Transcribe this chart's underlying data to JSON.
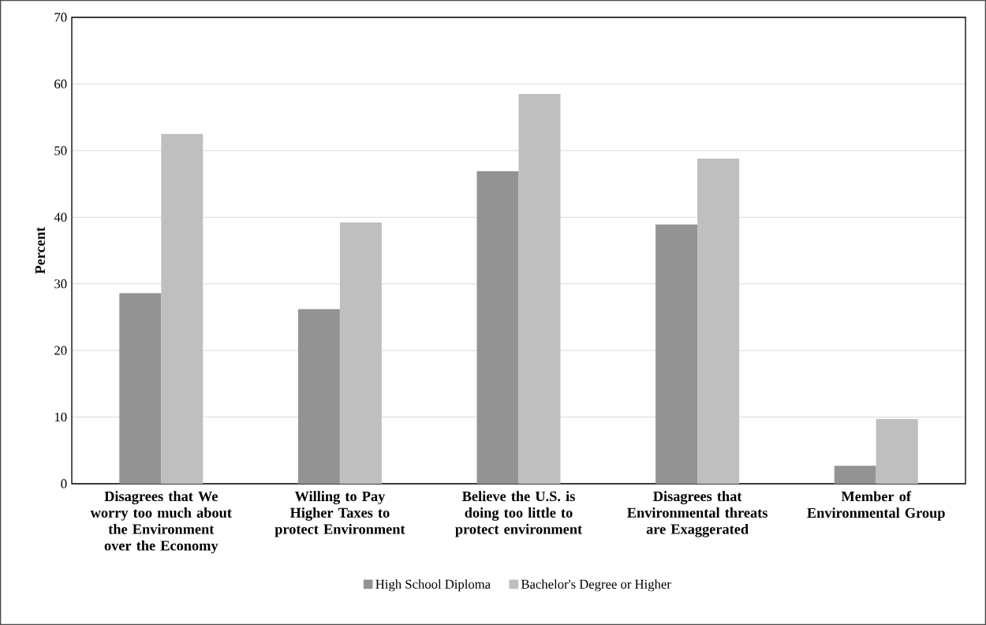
{
  "chart_data": {
    "type": "bar",
    "ylabel": "Percent",
    "categories": [
      "Disagrees that We worry too much about the Environment over the Economy",
      "Willing to Pay Higher Taxes to protect Environment",
      "Believe the U.S. is doing too little to protect environment",
      "Disagrees that Environmental threats are Exaggerated",
      "Member of Environmental Group"
    ],
    "series": [
      {
        "name": "High School Diploma",
        "color": "#939393",
        "values": [
          28.6,
          26.2,
          46.9,
          38.9,
          2.7
        ]
      },
      {
        "name": "Bachelor's Degree or Higher",
        "color": "#bfbfbf",
        "values": [
          52.5,
          39.2,
          58.5,
          48.8,
          9.7
        ]
      }
    ],
    "ylim": [
      0,
      70
    ],
    "yticks": [
      0,
      10,
      20,
      30,
      40,
      50,
      60,
      70
    ],
    "grid": "y",
    "legend": "bottom"
  }
}
